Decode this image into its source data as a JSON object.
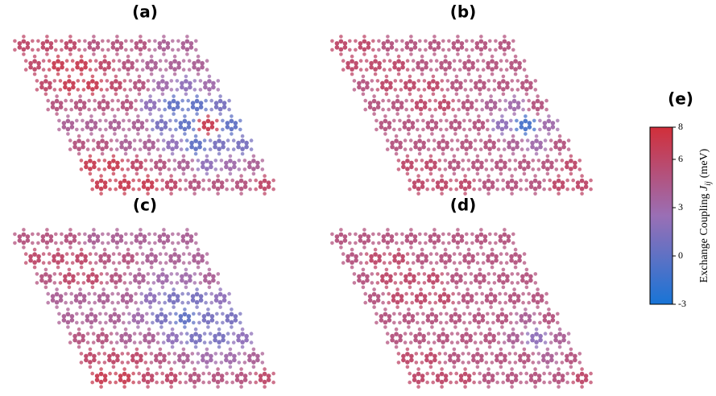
{
  "chart_data": [
    {
      "type": "lattice",
      "title": "(a)",
      "values": [
        [
          6,
          6,
          6,
          5,
          5,
          5,
          4,
          4
        ],
        [
          6,
          7,
          7,
          6,
          5,
          4,
          4,
          4
        ],
        [
          6,
          7,
          7,
          6,
          5,
          3,
          2,
          3
        ],
        [
          5,
          5,
          5,
          5,
          2,
          0,
          0,
          1
        ],
        [
          4,
          4,
          4,
          4,
          1,
          0,
          7,
          0
        ],
        [
          5,
          5,
          4,
          4,
          2,
          0,
          1,
          1
        ],
        [
          7,
          7,
          6,
          5,
          4,
          2,
          3,
          4
        ],
        [
          7,
          7,
          7,
          6,
          5,
          5,
          5,
          6
        ]
      ]
    },
    {
      "type": "lattice",
      "title": "(b)",
      "values": [
        [
          6,
          6,
          5,
          5,
          5,
          5,
          5,
          5
        ],
        [
          6,
          6,
          6,
          5,
          5,
          5,
          5,
          5
        ],
        [
          5,
          6,
          6,
          6,
          5,
          5,
          5,
          5
        ],
        [
          5,
          5,
          6,
          6,
          5,
          4,
          3,
          5
        ],
        [
          5,
          5,
          5,
          5,
          5,
          2,
          -1,
          3
        ],
        [
          5,
          5,
          5,
          5,
          5,
          4,
          3,
          5
        ],
        [
          6,
          6,
          5,
          5,
          5,
          5,
          5,
          6
        ],
        [
          6,
          6,
          6,
          5,
          5,
          5,
          6,
          6
        ]
      ]
    },
    {
      "type": "lattice",
      "title": "(c)",
      "values": [
        [
          5,
          5,
          5,
          4,
          4,
          4,
          4,
          4
        ],
        [
          6,
          6,
          6,
          5,
          5,
          4,
          4,
          4
        ],
        [
          5,
          6,
          6,
          5,
          4,
          3,
          3,
          4
        ],
        [
          4,
          4,
          4,
          4,
          2,
          1,
          1,
          2
        ],
        [
          4,
          4,
          4,
          3,
          1,
          0,
          1,
          1
        ],
        [
          5,
          5,
          4,
          4,
          2,
          1,
          1,
          2
        ],
        [
          6,
          6,
          6,
          5,
          4,
          3,
          3,
          4
        ],
        [
          7,
          7,
          6,
          6,
          5,
          5,
          5,
          6
        ]
      ]
    },
    {
      "type": "lattice",
      "title": "(d)",
      "values": [
        [
          5,
          5,
          5,
          5,
          5,
          5,
          5,
          5
        ],
        [
          5,
          6,
          6,
          5,
          5,
          5,
          5,
          5
        ],
        [
          5,
          6,
          6,
          6,
          5,
          5,
          5,
          5
        ],
        [
          5,
          6,
          6,
          6,
          5,
          5,
          5,
          5
        ],
        [
          5,
          5,
          5,
          5,
          5,
          5,
          4,
          5
        ],
        [
          5,
          5,
          5,
          5,
          5,
          4,
          2,
          4
        ],
        [
          6,
          6,
          5,
          5,
          5,
          5,
          4,
          5
        ],
        [
          6,
          6,
          6,
          5,
          5,
          5,
          5,
          6
        ]
      ]
    },
    {
      "type": "colorbar",
      "title": "(e)",
      "label": {
        "prefix": "Exchange Coupling ",
        "symbol": "J",
        "subscript": "ij",
        "unit": "(meV)"
      },
      "clim": [
        -3,
        8
      ],
      "ticks": [
        -3,
        0,
        3,
        6,
        8
      ],
      "colormap": [
        "#1874d6",
        "#9a6fb5",
        "#d12f3a"
      ]
    }
  ]
}
